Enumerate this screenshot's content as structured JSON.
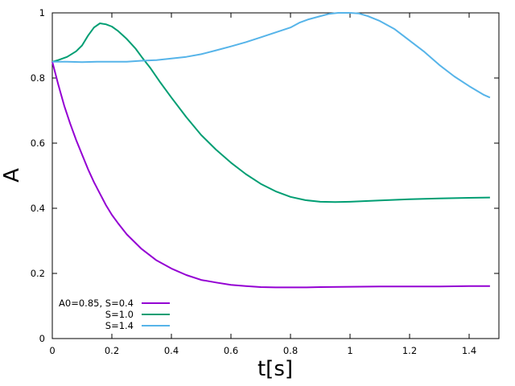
{
  "chart_data": {
    "type": "line",
    "xlabel": "t[s]",
    "ylabel": "A",
    "xlim": [
      0,
      1.5
    ],
    "ylim": [
      0,
      1
    ],
    "xticks": [
      0,
      0.2,
      0.4,
      0.6,
      0.8,
      1,
      1.2,
      1.4
    ],
    "xtick_labels": [
      "0",
      "0.2",
      "0.4",
      "0.6",
      "0.8",
      "1",
      "1.2",
      "1.4"
    ],
    "yticks": [
      0,
      0.2,
      0.4,
      0.6,
      0.8,
      1
    ],
    "ytick_labels": [
      "0",
      "0.2",
      "0.4",
      "0.6",
      "0.8",
      "1"
    ],
    "grid": false,
    "legend_position": "bottom-left",
    "series": [
      {
        "name": "A0=0.85, S=0.4",
        "color": "#9400d3",
        "points": [
          [
            0,
            0.85
          ],
          [
            0.02,
            0.78
          ],
          [
            0.04,
            0.715
          ],
          [
            0.06,
            0.66
          ],
          [
            0.08,
            0.61
          ],
          [
            0.1,
            0.565
          ],
          [
            0.12,
            0.52
          ],
          [
            0.14,
            0.48
          ],
          [
            0.16,
            0.445
          ],
          [
            0.18,
            0.41
          ],
          [
            0.2,
            0.38
          ],
          [
            0.22,
            0.355
          ],
          [
            0.25,
            0.32
          ],
          [
            0.3,
            0.275
          ],
          [
            0.35,
            0.24
          ],
          [
            0.4,
            0.215
          ],
          [
            0.45,
            0.195
          ],
          [
            0.5,
            0.18
          ],
          [
            0.55,
            0.172
          ],
          [
            0.6,
            0.165
          ],
          [
            0.65,
            0.161
          ],
          [
            0.7,
            0.158
          ],
          [
            0.75,
            0.157
          ],
          [
            0.8,
            0.157
          ],
          [
            0.85,
            0.157
          ],
          [
            0.9,
            0.158
          ],
          [
            1.0,
            0.159
          ],
          [
            1.1,
            0.16
          ],
          [
            1.2,
            0.16
          ],
          [
            1.3,
            0.16
          ],
          [
            1.4,
            0.161
          ],
          [
            1.47,
            0.161
          ]
        ]
      },
      {
        "name": "S=1.0",
        "color": "#009e73",
        "points": [
          [
            0,
            0.85
          ],
          [
            0.02,
            0.855
          ],
          [
            0.05,
            0.865
          ],
          [
            0.08,
            0.882
          ],
          [
            0.1,
            0.9
          ],
          [
            0.12,
            0.93
          ],
          [
            0.14,
            0.955
          ],
          [
            0.16,
            0.968
          ],
          [
            0.18,
            0.965
          ],
          [
            0.2,
            0.958
          ],
          [
            0.22,
            0.945
          ],
          [
            0.25,
            0.92
          ],
          [
            0.28,
            0.89
          ],
          [
            0.3,
            0.865
          ],
          [
            0.33,
            0.83
          ],
          [
            0.36,
            0.79
          ],
          [
            0.4,
            0.74
          ],
          [
            0.45,
            0.68
          ],
          [
            0.5,
            0.625
          ],
          [
            0.55,
            0.58
          ],
          [
            0.6,
            0.54
          ],
          [
            0.65,
            0.505
          ],
          [
            0.7,
            0.475
          ],
          [
            0.75,
            0.452
          ],
          [
            0.8,
            0.435
          ],
          [
            0.85,
            0.425
          ],
          [
            0.9,
            0.42
          ],
          [
            0.95,
            0.419
          ],
          [
            1.0,
            0.42
          ],
          [
            1.1,
            0.424
          ],
          [
            1.2,
            0.428
          ],
          [
            1.3,
            0.43
          ],
          [
            1.4,
            0.432
          ],
          [
            1.47,
            0.433
          ]
        ]
      },
      {
        "name": "S=1.4",
        "color": "#56b4e9",
        "points": [
          [
            0,
            0.85
          ],
          [
            0.05,
            0.85
          ],
          [
            0.1,
            0.849
          ],
          [
            0.15,
            0.85
          ],
          [
            0.2,
            0.85
          ],
          [
            0.25,
            0.85
          ],
          [
            0.3,
            0.853
          ],
          [
            0.35,
            0.855
          ],
          [
            0.4,
            0.86
          ],
          [
            0.45,
            0.865
          ],
          [
            0.5,
            0.873
          ],
          [
            0.55,
            0.885
          ],
          [
            0.6,
            0.897
          ],
          [
            0.65,
            0.91
          ],
          [
            0.7,
            0.925
          ],
          [
            0.75,
            0.94
          ],
          [
            0.8,
            0.955
          ],
          [
            0.83,
            0.97
          ],
          [
            0.86,
            0.98
          ],
          [
            0.9,
            0.99
          ],
          [
            0.93,
            0.997
          ],
          [
            0.96,
            1.0
          ],
          [
            1.0,
            1.0
          ],
          [
            1.03,
            0.998
          ],
          [
            1.06,
            0.99
          ],
          [
            1.1,
            0.975
          ],
          [
            1.15,
            0.95
          ],
          [
            1.2,
            0.915
          ],
          [
            1.25,
            0.88
          ],
          [
            1.3,
            0.84
          ],
          [
            1.35,
            0.805
          ],
          [
            1.4,
            0.775
          ],
          [
            1.45,
            0.748
          ],
          [
            1.47,
            0.74
          ]
        ]
      }
    ]
  }
}
